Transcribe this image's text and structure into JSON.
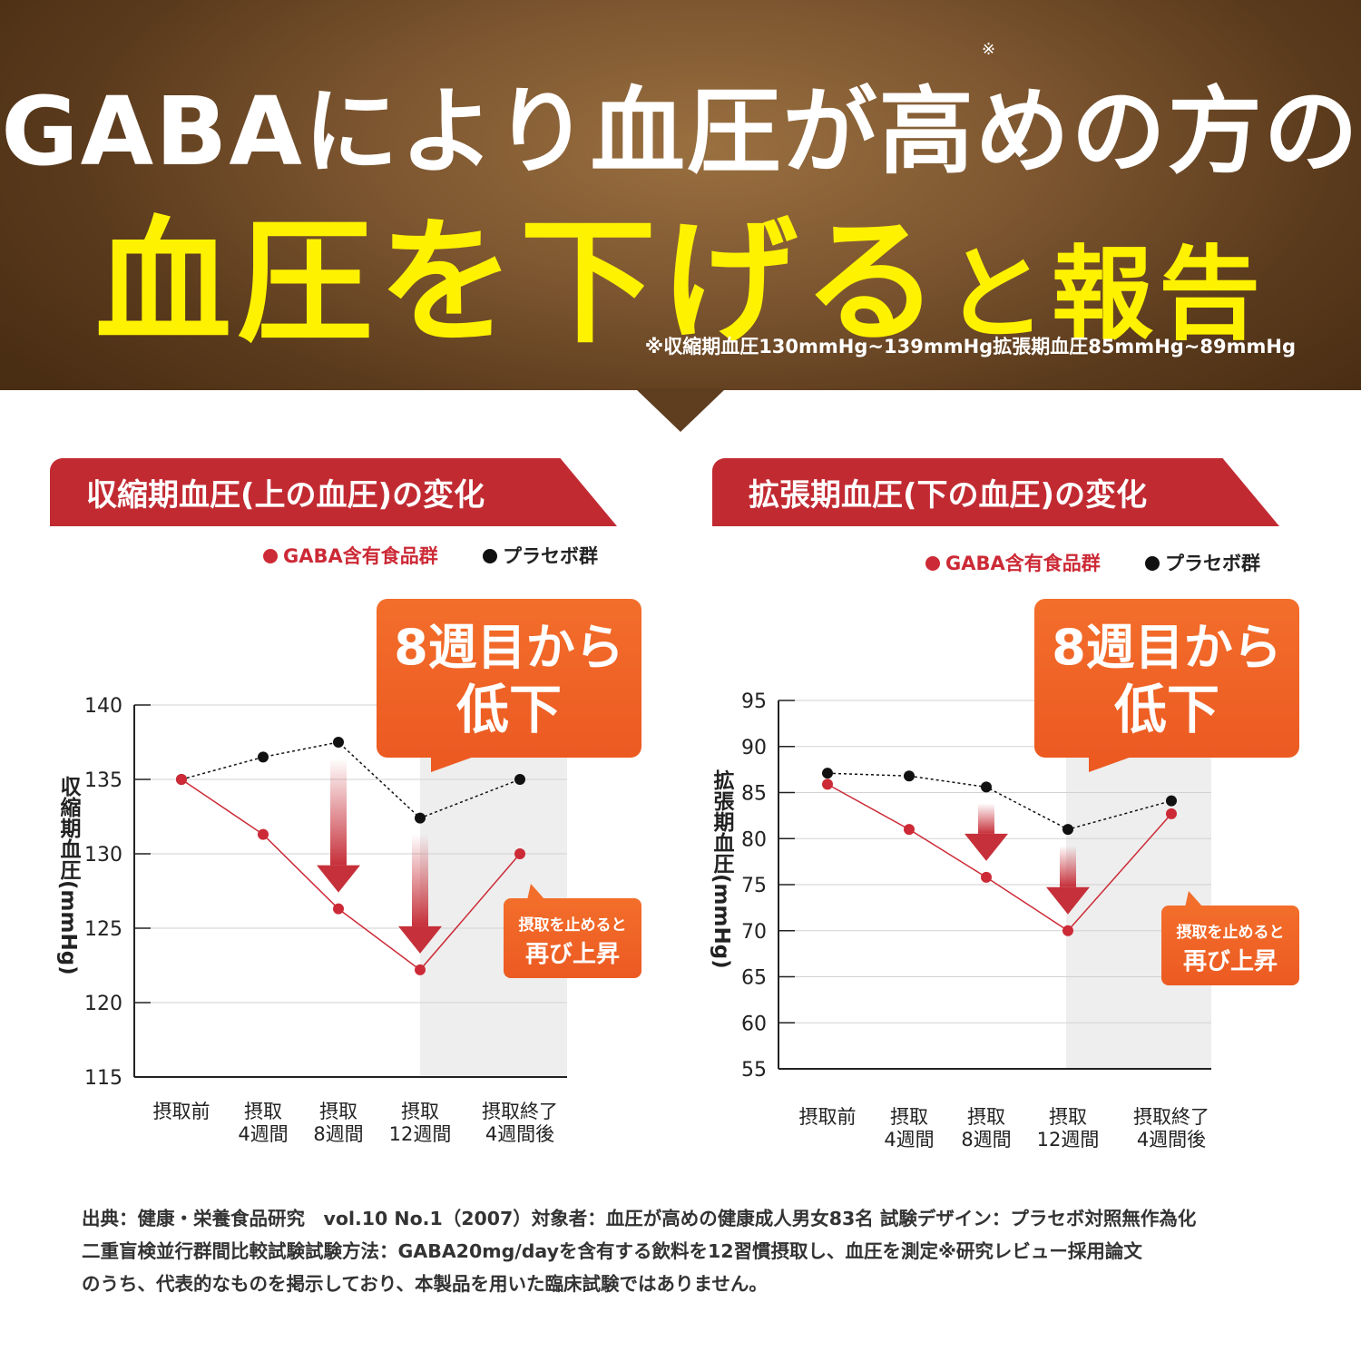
{
  "header": {
    "title_line1": "GABAにより血圧が高めの方の",
    "title_asterisk": "※",
    "title_line2_main": "血圧を下げる",
    "title_line2_small": "と報告",
    "footnote": "※収縮期血圧130mmHg~139mmHg拡張期血圧85mmHg~89mmHg",
    "colors": {
      "title": "#ffffff",
      "highlight": "#fff200",
      "background": "#6b4726"
    }
  },
  "chart_data": [
    {
      "type": "line",
      "title": "収縮期血圧(上の血圧)の変化",
      "ylabel": "収縮期血圧(mmHg)",
      "xlabel": "",
      "categories": [
        "摂取前",
        "摂取\n4週間",
        "摂取\n8週間",
        "摂取\n12週間",
        "摂取終了\n4週間後"
      ],
      "ylim": [
        115,
        140
      ],
      "yticks": [
        115,
        120,
        125,
        130,
        135,
        140
      ],
      "grid": true,
      "legend": "top-right",
      "series": [
        {
          "name": "GABA含有食品群",
          "color": "#cc2a36",
          "values": [
            135,
            131.3,
            126.3,
            122.2,
            130
          ]
        },
        {
          "name": "プラセボ群",
          "color": "#111111",
          "values": [
            135,
            136.5,
            137.5,
            132.4,
            135
          ]
        }
      ],
      "callout": {
        "line1": "8週目から",
        "line2": "低下"
      },
      "rebound_note": {
        "line1": "摂取を止めると",
        "line2": "再び上昇"
      }
    },
    {
      "type": "line",
      "title": "拡張期血圧(下の血圧)の変化",
      "ylabel": "拡張期血圧(mmHg)",
      "xlabel": "",
      "categories": [
        "摂取前",
        "摂取\n4週間",
        "摂取\n8週間",
        "摂取\n12週間",
        "摂取終了\n4週間後"
      ],
      "ylim": [
        55,
        95
      ],
      "yticks": [
        55,
        60,
        65,
        70,
        75,
        80,
        85,
        90,
        95
      ],
      "grid": true,
      "legend": "top-right",
      "series": [
        {
          "name": "GABA含有食品群",
          "color": "#cc2a36",
          "values": [
            85.9,
            81,
            75.8,
            70,
            82.7
          ]
        },
        {
          "name": "プラセボ群",
          "color": "#111111",
          "values": [
            87.1,
            86.8,
            85.6,
            81,
            84.1
          ]
        }
      ],
      "callout": {
        "line1": "8週目から",
        "line2": "低下"
      },
      "rebound_note": {
        "line1": "摂取を止めると",
        "line2": "再び上昇"
      }
    }
  ],
  "footer": {
    "line1": "出典：健康・栄養食品研究　vol.10 No.1（2007）対象者：血圧が高めの健康成人男女83名 試験デザイン：プラセボ対照無作為化",
    "line2": "二重盲検並行群間比較試験試験方法：GABA20mg/dayを含有する飲料を12習慣摂取し、血圧を測定※研究レビュー採用論文",
    "line3": "のうち、代表的なものを掲示しており、本製品を用いた臨床試験ではありません。"
  }
}
